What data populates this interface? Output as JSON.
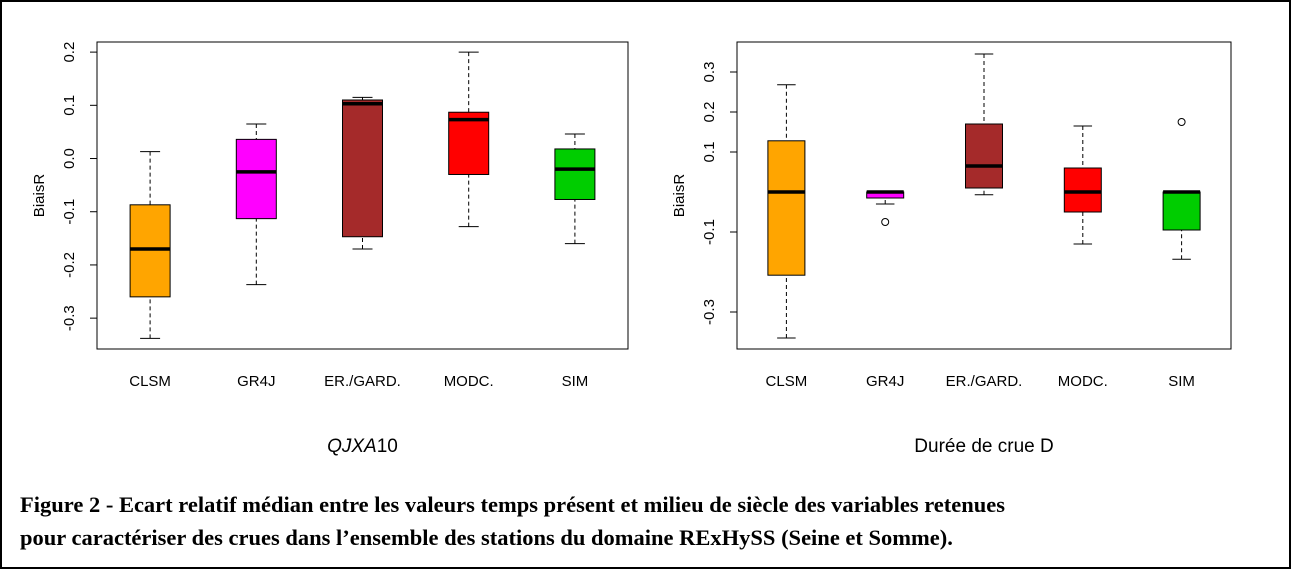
{
  "chart_data": [
    {
      "type": "box",
      "ylabel": "BiaisR",
      "xlabel_parts": [
        "QJXA",
        "10"
      ],
      "categories": [
        "CLSM",
        "GR4J",
        "ER./GARD.",
        "MODC.",
        "SIM"
      ],
      "colors": [
        "#FFA500",
        "#FF00FF",
        "#A52A2A",
        "#FF0000",
        "#00CD00"
      ],
      "ylim": [
        -0.358,
        0.219
      ],
      "yticks": [
        -0.3,
        -0.2,
        -0.1,
        {
          "value": 0,
          "label": "0.0"
        },
        0.1,
        0.2
      ],
      "boxes": [
        {
          "low": -0.338,
          "q1": -0.26,
          "median": -0.17,
          "q3": -0.087,
          "high": 0.013
        },
        {
          "low": -0.237,
          "q1": -0.113,
          "median": -0.025,
          "q3": 0.036,
          "high": 0.065
        },
        {
          "low": -0.17,
          "q1": -0.147,
          "median": 0.103,
          "q3": 0.11,
          "high": 0.115
        },
        {
          "low": -0.128,
          "q1": -0.03,
          "median": 0.073,
          "q3": 0.087,
          "high": 0.2
        },
        {
          "low": -0.16,
          "q1": -0.077,
          "median": -0.02,
          "q3": 0.018,
          "high": 0.046
        }
      ]
    },
    {
      "type": "box",
      "ylabel": "BiaisR",
      "xlabel_parts": [
        "Durée de crue D"
      ],
      "categories": [
        "CLSM",
        "GR4J",
        "ER./GARD.",
        "MODC.",
        "SIM"
      ],
      "colors": [
        "#FFA500",
        "#FF00FF",
        "#A52A2A",
        "#FF0000",
        "#00CD00"
      ],
      "ylim": [
        -0.3925,
        0.375
      ],
      "yticks": [
        -0.3,
        -0.1,
        0.1,
        0.2,
        0.3
      ],
      "boxes": [
        {
          "low": -0.365,
          "q1": -0.208,
          "median": 0,
          "q3": 0.128,
          "high": 0.268
        },
        {
          "low": -0.03,
          "q1": -0.015,
          "median": 0,
          "q3": 0,
          "high": 0,
          "outliers": [
            -0.075
          ]
        },
        {
          "low": -0.007,
          "q1": 0.01,
          "median": 0.065,
          "q3": 0.17,
          "high": 0.345
        },
        {
          "low": -0.13,
          "q1": -0.05,
          "median": 0,
          "q3": 0.06,
          "high": 0.165
        },
        {
          "low": -0.168,
          "q1": -0.095,
          "median": 0,
          "q3": 0,
          "high": 0,
          "outliers": [
            0.175
          ]
        }
      ]
    }
  ],
  "caption_lines": [
    "Figure 2 - Ecart relatif médian entre les valeurs temps présent et milieu de siècle des variables retenues",
    "pour caractériser des crues dans l’ensemble des stations du domaine RExHySS (Seine et Somme)."
  ]
}
